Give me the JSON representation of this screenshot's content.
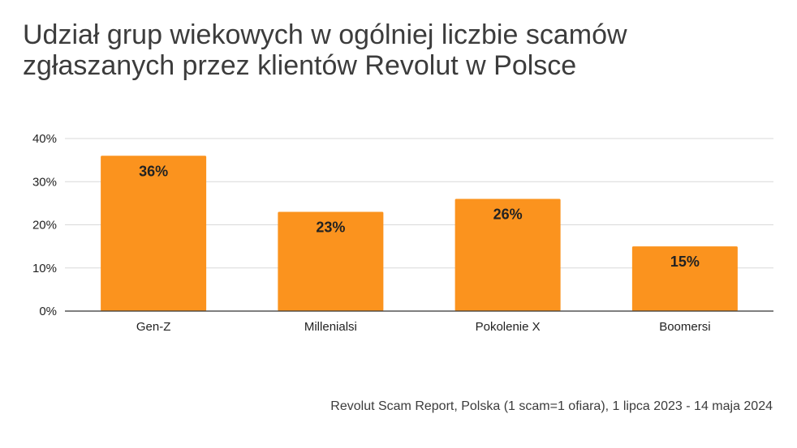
{
  "title_lines": [
    "Udział grup wiekowych w ogólniej liczbie scamów",
    "zgłaszanych przez klientów Revolut w Polsce"
  ],
  "source_note": "Revolut Scam Report, Polska (1 scam=1 ofiara), 1 lipca 2023 - 14 maja 2024",
  "colors": {
    "bar": "#fb931e",
    "grid": "#d9d9d9",
    "axis": "#333333",
    "text": "#222222",
    "title": "#3c3c3c"
  },
  "chart_data": {
    "type": "bar",
    "title": "Udział grup wiekowych w ogólniej liczbie scamów zgłaszanych przez klientów Revolut w Polsce",
    "xlabel": "",
    "ylabel": "",
    "categories": [
      "Gen-Z",
      "Millenialsi",
      "Pokolenie X",
      "Boomersi"
    ],
    "values": [
      36,
      23,
      26,
      15
    ],
    "value_labels": [
      "36%",
      "23%",
      "26%",
      "15%"
    ],
    "ylim": [
      0,
      40
    ],
    "y_ticks": [
      0,
      10,
      20,
      30,
      40
    ],
    "y_tick_labels": [
      "0%",
      "10%",
      "20%",
      "30%",
      "40%"
    ],
    "grid": true,
    "legend": "none"
  }
}
